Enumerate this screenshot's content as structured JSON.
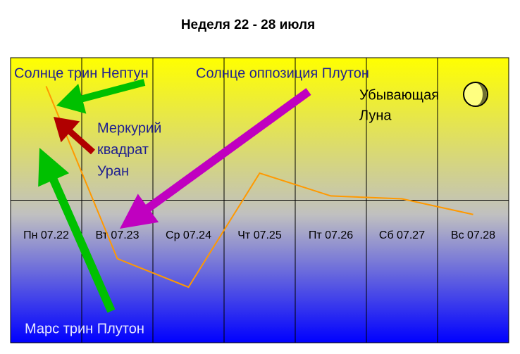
{
  "chart_data": {
    "type": "line",
    "title": "Неделя 22 - 28 июля",
    "categories": [
      "Пн 07.22",
      "Вт 07.23",
      "Ср 07.24",
      "Чт 07.25",
      "Пт 07.26",
      "Сб 07.27",
      "Вс 07.28"
    ],
    "values": [
      0.8,
      -0.41,
      -0.61,
      0.19,
      0.03,
      0.01,
      -0.1
    ],
    "color": "#ff9900",
    "ylim": [
      -1,
      1
    ],
    "annotations": [
      [
        "Солнце трин Нептун"
      ],
      [
        "Солнце оппозиция Плутон"
      ],
      [
        "Убывающая",
        "Луна"
      ],
      [
        "Меркурий",
        "квадрат",
        "Уран"
      ],
      [
        "Марс трин Плутон"
      ]
    ]
  }
}
